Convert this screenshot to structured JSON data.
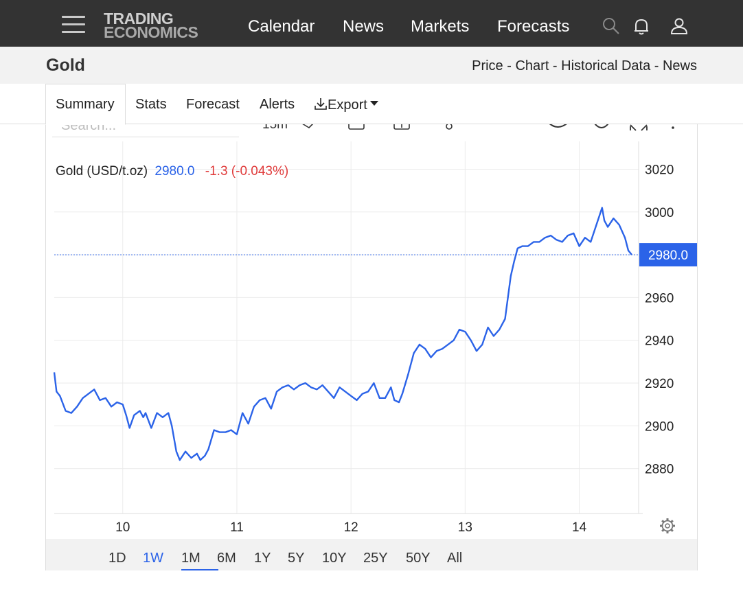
{
  "brand": {
    "line1": "TRADING",
    "line2": "ECONOMICS"
  },
  "nav": {
    "calendar": "Calendar",
    "news": "News",
    "markets": "Markets",
    "forecasts": "Forecasts"
  },
  "icons": {
    "menu": "hamburger-icon",
    "search": "search-icon",
    "notifications": "bell-icon",
    "account": "user-icon",
    "settings": "gear-icon",
    "export": "download-icon"
  },
  "page": {
    "title": "Gold",
    "breadcrumbs": {
      "price": "Price",
      "sep1": " - ",
      "chart": "Chart",
      "sep2": " - ",
      "historical": "Historical Data",
      "sep3": " - ",
      "news": "News"
    }
  },
  "tabs": {
    "summary": "Summary",
    "stats": "Stats",
    "forecast": "Forecast",
    "alerts": "Alerts",
    "export": "Export"
  },
  "search": {
    "placeholder": "Search..."
  },
  "toolbar": {
    "interval": "15m"
  },
  "legend": {
    "name": "Gold (USD/t.oz)",
    "price": "2980.0",
    "change": "-1.3 (-0.043%)"
  },
  "colors": {
    "line": "#2b63e8",
    "negative": "#e03c3c",
    "nav_bg": "#333333",
    "price_tag": "#2b63e8"
  },
  "ranges": [
    "1D",
    "1W",
    "1M",
    "6M",
    "1Y",
    "5Y",
    "10Y",
    "25Y",
    "50Y",
    "All"
  ],
  "active_range": "1W",
  "chart_data": {
    "type": "line",
    "title": "Gold (USD/t.oz)",
    "last_price": 2980.0,
    "last_price_label": "2980.0",
    "ylim": [
      2859,
      3033
    ],
    "y_ticks": [
      2880,
      2900,
      2920,
      2940,
      2960,
      2980,
      3000,
      3020
    ],
    "y_tick_labels": [
      "2880",
      "2900",
      "2920",
      "2940",
      "2960",
      "",
      "3000",
      "3020"
    ],
    "xlim": [
      9.4,
      14.52
    ],
    "x_ticks": [
      10,
      11,
      12,
      13,
      14
    ],
    "x_tick_labels": [
      "10",
      "11",
      "12",
      "13",
      "14"
    ],
    "grid": true,
    "series": [
      {
        "x": [
          9.4,
          9.42,
          9.45,
          9.5,
          9.55,
          9.6,
          9.65,
          9.7,
          9.75,
          9.8,
          9.85,
          9.9,
          9.95,
          10.0,
          10.03,
          10.06,
          10.1,
          10.15,
          10.18,
          10.2,
          10.25,
          10.3,
          10.35,
          10.4,
          10.43,
          10.47,
          10.5,
          10.55,
          10.6,
          10.65,
          10.68,
          10.72,
          10.75,
          10.8,
          10.85,
          10.9,
          10.95,
          11.0,
          11.05,
          11.1,
          11.15,
          11.2,
          11.25,
          11.3,
          11.35,
          11.4,
          11.45,
          11.5,
          11.55,
          11.6,
          11.65,
          11.7,
          11.75,
          11.8,
          11.85,
          11.9,
          11.95,
          12.0,
          12.05,
          12.1,
          12.15,
          12.2,
          12.25,
          12.3,
          12.35,
          12.38,
          12.42,
          12.45,
          12.5,
          12.55,
          12.6,
          12.65,
          12.7,
          12.75,
          12.8,
          12.85,
          12.9,
          12.95,
          13.0,
          13.05,
          13.1,
          13.15,
          13.2,
          13.25,
          13.3,
          13.35,
          13.4,
          13.43,
          13.46,
          13.5,
          13.55,
          13.6,
          13.65,
          13.7,
          13.75,
          13.8,
          13.85,
          13.9,
          13.95,
          14.0,
          14.05,
          14.1,
          14.15,
          14.2,
          14.22,
          14.25,
          14.3,
          14.35,
          14.4,
          14.43,
          14.46
        ],
        "y": [
          2925,
          2916,
          2914,
          2907,
          2906,
          2909,
          2913,
          2915,
          2917,
          2912,
          2913,
          2909,
          2911,
          2910,
          2905,
          2899,
          2905,
          2907,
          2904,
          2906,
          2899,
          2906,
          2904,
          2906,
          2900,
          2888,
          2884,
          2888,
          2885,
          2887,
          2884,
          2886,
          2889,
          2898,
          2897,
          2897,
          2898,
          2896,
          2906,
          2901,
          2909,
          2912,
          2913,
          2908,
          2916,
          2918,
          2919,
          2917,
          2919,
          2920,
          2918,
          2917,
          2919,
          2916,
          2913,
          2918,
          2916,
          2914,
          2912,
          2915,
          2916,
          2920,
          2913,
          2913,
          2918,
          2912,
          2911,
          2915,
          2924,
          2934,
          2938,
          2936,
          2932,
          2935,
          2936,
          2938,
          2940,
          2945,
          2944,
          2940,
          2935,
          2938,
          2946,
          2942,
          2945,
          2950,
          2970,
          2977,
          2983,
          2984,
          2984,
          2986,
          2986,
          2988,
          2989,
          2987,
          2986,
          2989,
          2990,
          2984,
          2988,
          2986,
          2994,
          3002,
          2996,
          2993,
          2997,
          2994,
          2988,
          2982,
          2980
        ]
      }
    ]
  }
}
